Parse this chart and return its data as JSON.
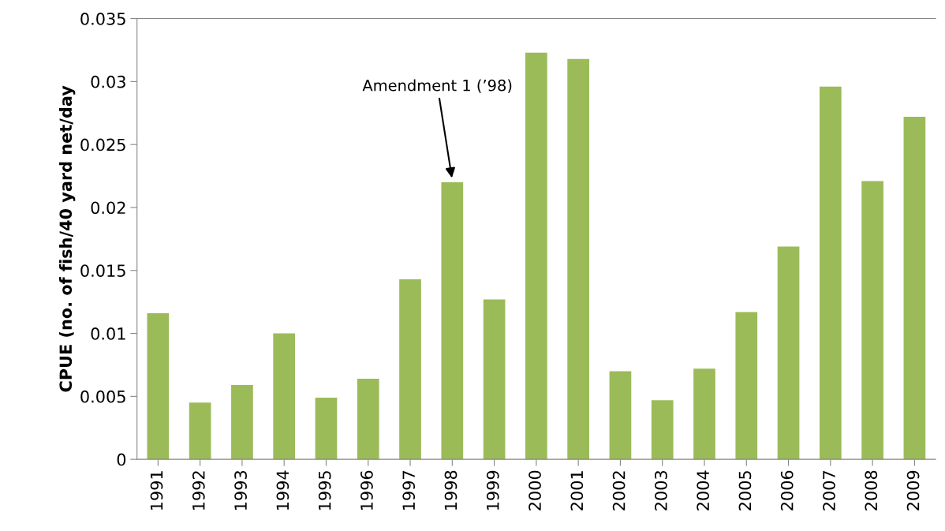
{
  "chart_data": {
    "type": "bar",
    "ylabel": "CPUE (no. of fish/40 yard net/day",
    "categories": [
      "1991",
      "1992",
      "1993",
      "1994",
      "1995",
      "1996",
      "1997",
      "1998",
      "1999",
      "2000",
      "2001",
      "2002",
      "2003",
      "2004",
      "2005",
      "2006",
      "2007",
      "2008",
      "2009"
    ],
    "values": [
      0.0116,
      0.0045,
      0.0059,
      0.01,
      0.0049,
      0.0064,
      0.0143,
      0.022,
      0.0127,
      0.0323,
      0.0318,
      0.007,
      0.0047,
      0.0072,
      0.0117,
      0.0169,
      0.0296,
      0.0221,
      0.0272
    ],
    "color": "#9bbb59",
    "ylim": [
      0,
      0.035
    ],
    "yticks": [
      0,
      0.005,
      0.01,
      0.015,
      0.02,
      0.025,
      0.03,
      0.035
    ],
    "annotations": [
      {
        "text": "Amendment 1 (’98)",
        "x": "1998",
        "y": 0.022
      }
    ],
    "grid": false,
    "legend": false
  }
}
